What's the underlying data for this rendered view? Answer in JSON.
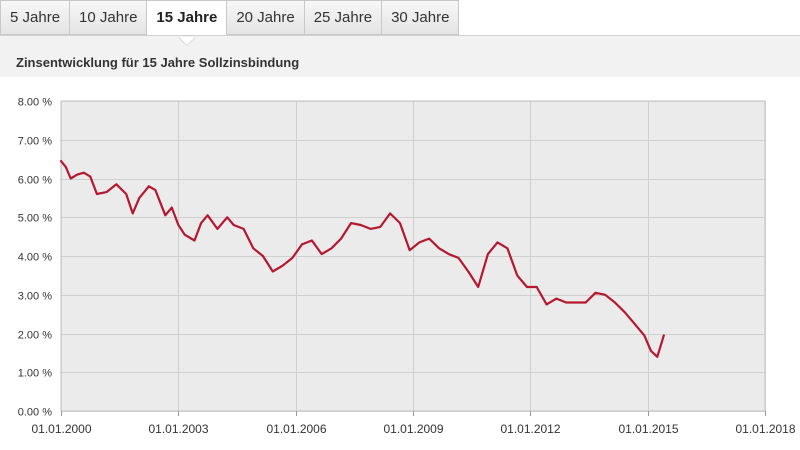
{
  "tabs": [
    {
      "label": "5 Jahre",
      "active": false
    },
    {
      "label": "10 Jahre",
      "active": false
    },
    {
      "label": "15 Jahre",
      "active": true
    },
    {
      "label": "20 Jahre",
      "active": false
    },
    {
      "label": "25 Jahre",
      "active": false
    },
    {
      "label": "30 Jahre",
      "active": false
    }
  ],
  "panel": {
    "title": "Zinsentwicklung für 15 Jahre Sollzinsbindung"
  },
  "colors": {
    "line": "#b5172e",
    "plot_bg": "#ebebeb",
    "grid": "#cfcfcf"
  },
  "chart_data": {
    "type": "line",
    "title": "Zinsentwicklung für 15 Jahre Sollzinsbindung",
    "xlabel": "",
    "ylabel": "",
    "xlim": [
      "2000-01-01",
      "2018-01-01"
    ],
    "ylim": [
      0,
      8
    ],
    "y_ticks": [
      "0.00 %",
      "1.00 %",
      "2.00 %",
      "3.00 %",
      "4.00 %",
      "5.00 %",
      "6.00 %",
      "7.00 %",
      "8.00 %"
    ],
    "x_ticks": [
      "01.01.2000",
      "01.01.2003",
      "01.01.2006",
      "01.01.2009",
      "01.01.2012",
      "01.01.2015",
      "01.01.2018"
    ],
    "grid": true,
    "series": [
      {
        "x": [
          "2000-01-01",
          "2000-02-15",
          "2000-04-01",
          "2000-06-01",
          "2000-08-01",
          "2000-10-01",
          "2000-12-01",
          "2001-03-01",
          "2001-06-01",
          "2001-09-01",
          "2001-11-01",
          "2002-01-01",
          "2002-04-01",
          "2002-06-01",
          "2002-09-01",
          "2002-11-01",
          "2003-01-01",
          "2003-03-01",
          "2003-06-01",
          "2003-08-01",
          "2003-10-01",
          "2004-01-01",
          "2004-04-01",
          "2004-06-01",
          "2004-09-01",
          "2004-12-01",
          "2005-03-01",
          "2005-06-01",
          "2005-09-01",
          "2005-12-01",
          "2006-03-01",
          "2006-06-01",
          "2006-09-01",
          "2006-12-01",
          "2007-03-01",
          "2007-06-01",
          "2007-09-01",
          "2007-12-01",
          "2008-03-01",
          "2008-06-01",
          "2008-09-01",
          "2008-12-01",
          "2009-03-01",
          "2009-06-01",
          "2009-09-01",
          "2009-12-01",
          "2010-03-01",
          "2010-06-01",
          "2010-09-01",
          "2010-12-01",
          "2011-03-01",
          "2011-06-01",
          "2011-09-01",
          "2011-12-01",
          "2012-03-01",
          "2012-06-01",
          "2012-09-01",
          "2012-12-01",
          "2013-03-01",
          "2013-06-01",
          "2013-09-01",
          "2013-12-01",
          "2014-03-01",
          "2014-06-01",
          "2014-09-01",
          "2014-12-01",
          "2015-02-01",
          "2015-04-01",
          "2015-06-01"
        ],
        "y": [
          6.45,
          6.3,
          6.0,
          6.1,
          6.15,
          6.05,
          5.6,
          5.65,
          5.85,
          5.6,
          5.1,
          5.5,
          5.8,
          5.7,
          5.05,
          5.25,
          4.8,
          4.55,
          4.4,
          4.85,
          5.05,
          4.7,
          5.0,
          4.8,
          4.7,
          4.2,
          4.0,
          3.6,
          3.75,
          3.95,
          4.3,
          4.4,
          4.05,
          4.2,
          4.45,
          4.85,
          4.8,
          4.7,
          4.75,
          5.1,
          4.85,
          4.15,
          4.35,
          4.45,
          4.2,
          4.05,
          3.95,
          3.6,
          3.2,
          4.05,
          4.35,
          4.2,
          3.5,
          3.2,
          3.2,
          2.75,
          2.9,
          2.8,
          2.8,
          2.8,
          3.05,
          3.0,
          2.8,
          2.55,
          2.25,
          1.95,
          1.55,
          1.4,
          1.95
        ]
      }
    ]
  }
}
